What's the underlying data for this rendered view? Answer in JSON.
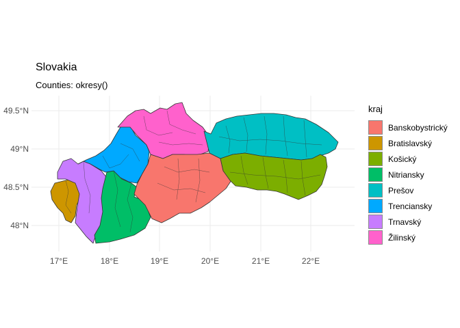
{
  "title": "Slovakia",
  "subtitle": "Counties: okresy()",
  "map": {
    "x_ticks": [
      "17°E",
      "18°E",
      "19°E",
      "20°E",
      "21°E",
      "22°E"
    ],
    "y_ticks": [
      "49.5°N",
      "49°N",
      "48.5°N",
      "48°N"
    ],
    "grid": true
  },
  "legend": {
    "title": "kraj",
    "placement": "right",
    "items": [
      {
        "label": "Banskobystrický",
        "color": "#F8766D"
      },
      {
        "label": "Bratislavský",
        "color": "#CD9600"
      },
      {
        "label": "Košický",
        "color": "#7CAE00"
      },
      {
        "label": "Nitriansky",
        "color": "#00BE67"
      },
      {
        "label": "Prešov",
        "color": "#00BFC4"
      },
      {
        "label": "Trenciansky",
        "color": "#00A9FF"
      },
      {
        "label": "Trnavský",
        "color": "#C77CFF"
      },
      {
        "label": "Žilinský",
        "color": "#FF61CC"
      }
    ]
  }
}
